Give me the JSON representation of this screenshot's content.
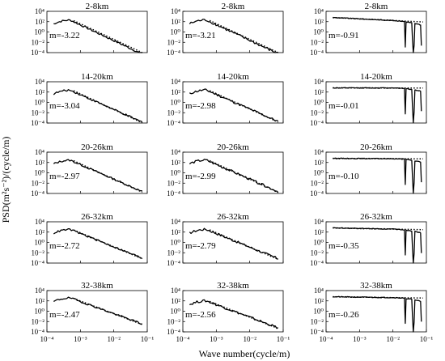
{
  "chart_data": {
    "type": "line",
    "xlabel": "Wave number(cycle/m)",
    "ylabel": "PSD(m²s⁻²)/(cycle/m)",
    "x_scale": "log",
    "y_scale": "log",
    "xlim": [
      0.0001,
      0.1
    ],
    "ylim": [
      0.0001,
      10000
    ],
    "x_ticks": [
      "10⁻⁴",
      "10⁻³",
      "10⁻²",
      "10⁻¹"
    ],
    "y_ticks": [
      "10⁴",
      "10²",
      "10⁰",
      "10⁻²",
      "10⁻⁴"
    ],
    "panels": [
      {
        "row": 0,
        "col": 0,
        "title": "2-8km",
        "annotation": "m=-3.22",
        "slope": -3.22,
        "shape": "decay"
      },
      {
        "row": 0,
        "col": 1,
        "title": "2-8km",
        "annotation": "m=-3.21",
        "slope": -3.21,
        "shape": "decay"
      },
      {
        "row": 0,
        "col": 2,
        "title": "2-8km",
        "annotation": "m=-0.91",
        "slope": -0.91,
        "shape": "flat"
      },
      {
        "row": 1,
        "col": 0,
        "title": "14-20km",
        "annotation": "m=-3.04",
        "slope": -3.04,
        "shape": "decay"
      },
      {
        "row": 1,
        "col": 1,
        "title": "14-20km",
        "annotation": "m=-2.98",
        "slope": -2.98,
        "shape": "decay"
      },
      {
        "row": 1,
        "col": 2,
        "title": "14-20km",
        "annotation": "m=-0.01",
        "slope": -0.01,
        "shape": "flat"
      },
      {
        "row": 2,
        "col": 0,
        "title": "20-26km",
        "annotation": "m=-2.97",
        "slope": -2.97,
        "shape": "decay"
      },
      {
        "row": 2,
        "col": 1,
        "title": "20-26km",
        "annotation": "m=-2.99",
        "slope": -2.99,
        "shape": "decay"
      },
      {
        "row": 2,
        "col": 2,
        "title": "20-26km",
        "annotation": "m=-0.10",
        "slope": -0.1,
        "shape": "flat"
      },
      {
        "row": 3,
        "col": 0,
        "title": "26-32km",
        "annotation": "m=-2.72",
        "slope": -2.72,
        "shape": "decay"
      },
      {
        "row": 3,
        "col": 1,
        "title": "26-32km",
        "annotation": "m=-2.79",
        "slope": -2.79,
        "shape": "decay"
      },
      {
        "row": 3,
        "col": 2,
        "title": "26-32km",
        "annotation": "m=-0.35",
        "slope": -0.35,
        "shape": "flat"
      },
      {
        "row": 4,
        "col": 0,
        "title": "32-38km",
        "annotation": "m=-2.47",
        "slope": -2.47,
        "shape": "decay"
      },
      {
        "row": 4,
        "col": 1,
        "title": "32-38km",
        "annotation": "m=-2.56",
        "slope": -2.56,
        "shape": "decay"
      },
      {
        "row": 4,
        "col": 2,
        "title": "32-38km",
        "annotation": "m=-0.26",
        "slope": -0.26,
        "shape": "flat"
      }
    ]
  }
}
